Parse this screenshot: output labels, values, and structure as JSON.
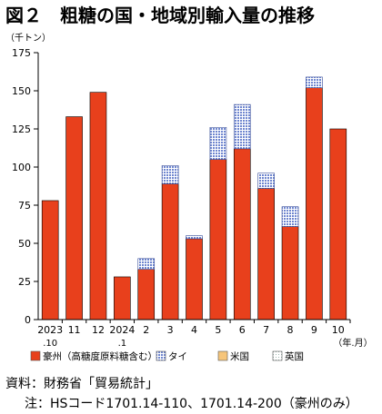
{
  "title": "図２　粗糖の国・地域別輸入量の推移",
  "source": "資料：財務省「貿易統計」",
  "note": "注：HSコード1701.14-110、1701.14-200（豪州のみ）",
  "colors": {
    "australia": "#e8401c",
    "thai": "#8ea3dc",
    "us": "#f6c57a",
    "uk": "#e6f2f0"
  },
  "chart_data": {
    "type": "bar",
    "stacked": true,
    "y_unit": "（千トン）",
    "x_unit": "（年.月）",
    "ylim": [
      0,
      175
    ],
    "yticks": [
      0,
      25,
      50,
      75,
      100,
      125,
      150,
      175
    ],
    "grid": false,
    "legend_position": "bottom",
    "categories": [
      [
        "2023",
        ".10"
      ],
      [
        "11",
        ""
      ],
      [
        "12",
        ""
      ],
      [
        "2024",
        ".1"
      ],
      [
        "2",
        ""
      ],
      [
        "3",
        ""
      ],
      [
        "4",
        ""
      ],
      [
        "5",
        ""
      ],
      [
        "6",
        ""
      ],
      [
        "7",
        ""
      ],
      [
        "8",
        ""
      ],
      [
        "9",
        ""
      ],
      [
        "10",
        ""
      ]
    ],
    "series": [
      {
        "name": "豪州（高糖度原料糖含む）",
        "values": [
          78,
          133,
          149,
          28,
          33,
          89,
          53,
          105,
          112,
          86,
          61,
          152,
          125
        ]
      },
      {
        "name": "タイ",
        "values": [
          0,
          0,
          0,
          0,
          7,
          12,
          2,
          21,
          29,
          10,
          13,
          7,
          0
        ]
      },
      {
        "name": "米国",
        "values": [
          0,
          0,
          0,
          0,
          0,
          0,
          0,
          0,
          0,
          0,
          0,
          0,
          0
        ]
      },
      {
        "name": "英国",
        "values": [
          0,
          0,
          0,
          0,
          0,
          0,
          0,
          0,
          0,
          0,
          0,
          0,
          0
        ]
      }
    ]
  }
}
